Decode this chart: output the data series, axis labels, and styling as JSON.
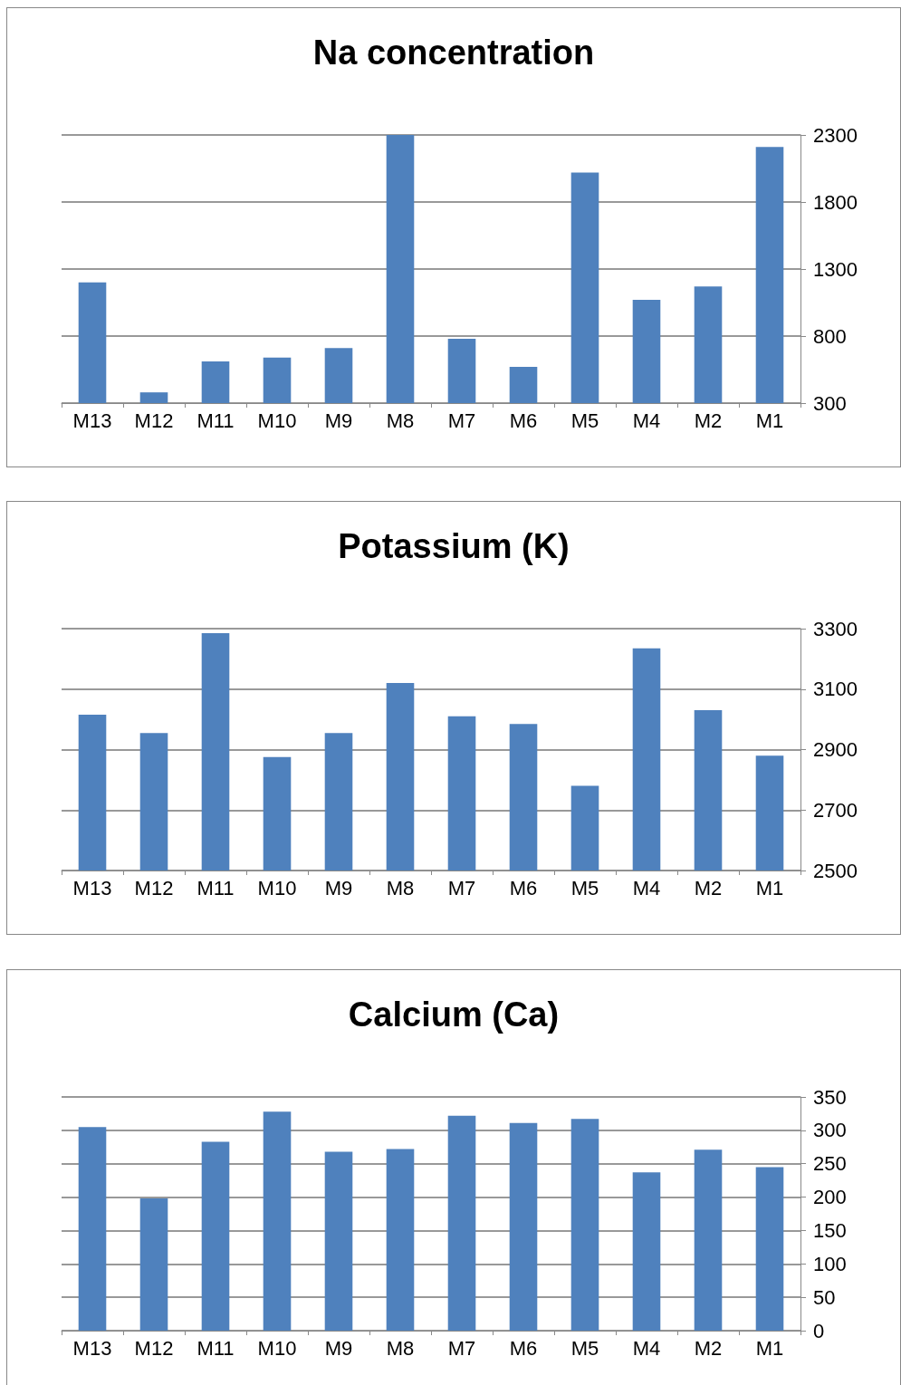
{
  "chart_data": [
    {
      "type": "bar",
      "title": "Na concentration",
      "categories": [
        "M13",
        "M12",
        "M11",
        "M10",
        "M9",
        "M8",
        "M7",
        "M6",
        "M5",
        "M4",
        "M2",
        "M1"
      ],
      "series": [
        {
          "color": "#4f81bd",
          "values": [
            1200,
            380,
            610,
            640,
            710,
            2300,
            780,
            570,
            2020,
            1070,
            1170,
            2210
          ]
        }
      ],
      "ylim": [
        300,
        2300
      ],
      "yticks": [
        300,
        800,
        1300,
        1800,
        2300
      ],
      "grid": "y"
    },
    {
      "type": "bar",
      "title": "Potassium (K)",
      "categories": [
        "M13",
        "M12",
        "M11",
        "M10",
        "M9",
        "M8",
        "M7",
        "M6",
        "M5",
        "M4",
        "M2",
        "M1"
      ],
      "series": [
        {
          "color": "#4f81bd",
          "values": [
            3015,
            2955,
            3285,
            2875,
            2955,
            3120,
            3010,
            2985,
            2780,
            3235,
            3030,
            2880
          ]
        }
      ],
      "ylim": [
        2500,
        3300
      ],
      "yticks": [
        2500,
        2700,
        2900,
        3100,
        3300
      ],
      "grid": "y"
    },
    {
      "type": "bar",
      "title": "Calcium (Ca)",
      "categories": [
        "M13",
        "M12",
        "M11",
        "M10",
        "M9",
        "M8",
        "M7",
        "M6",
        "M5",
        "M4",
        "M2",
        "M1"
      ],
      "series": [
        {
          "color": "#4f81bd",
          "values": [
            305,
            198,
            283,
            328,
            268,
            272,
            322,
            311,
            317,
            237,
            271,
            245
          ]
        }
      ],
      "ylim": [
        0,
        350
      ],
      "yticks": [
        0,
        50,
        100,
        150,
        200,
        250,
        300,
        350
      ],
      "grid": "y"
    }
  ]
}
